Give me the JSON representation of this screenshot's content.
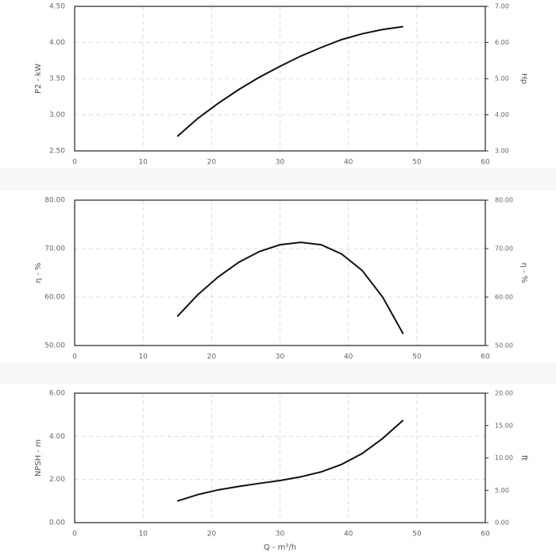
{
  "chart_data": [
    {
      "type": "line",
      "x": [
        15,
        18,
        21,
        24,
        27,
        30,
        33,
        36,
        39,
        42,
        45,
        48
      ],
      "values": [
        2.7,
        2.95,
        3.16,
        3.35,
        3.52,
        3.67,
        3.81,
        3.93,
        4.04,
        4.12,
        4.18,
        4.22
      ],
      "color": "#111111",
      "grid": true,
      "xlim": [
        0,
        60
      ],
      "xticks": [
        0,
        10,
        20,
        30,
        40,
        50,
        60
      ],
      "ylim": [
        2.5,
        4.5
      ],
      "yticks": [
        {
          "value": 2.5,
          "label": "2.50"
        },
        {
          "value": 3,
          "label": "3.00"
        },
        {
          "value": 3.5,
          "label": "3.50"
        },
        {
          "value": 4,
          "label": "4.00"
        },
        {
          "value": 4.5,
          "label": "4.50"
        }
      ],
      "y2lim": [
        3,
        7
      ],
      "y2ticks": [
        {
          "value": 3,
          "label": "3.00"
        },
        {
          "value": 4,
          "label": "4.00"
        },
        {
          "value": 5,
          "label": "5.00"
        },
        {
          "value": 6,
          "label": "6.00"
        },
        {
          "value": 7,
          "label": "7.00"
        }
      ],
      "ylabel": "P2 - kW",
      "y2label": "Hp"
    },
    {
      "type": "line",
      "x": [
        15,
        18,
        21,
        24,
        27,
        30,
        33,
        36,
        39,
        42,
        45,
        48
      ],
      "values": [
        56,
        60.5,
        64.2,
        67.2,
        69.4,
        70.8,
        71.3,
        70.8,
        68.9,
        65.5,
        60,
        52.4
      ],
      "color": "#111111",
      "grid": true,
      "xlim": [
        0,
        60
      ],
      "xticks": [
        0,
        10,
        20,
        30,
        40,
        50,
        60
      ],
      "ylim": [
        50,
        80
      ],
      "yticks": [
        {
          "value": 50,
          "label": "50.00"
        },
        {
          "value": 60,
          "label": "60.00"
        },
        {
          "value": 70,
          "label": "70.00"
        },
        {
          "value": 80,
          "label": "80.00"
        }
      ],
      "y2lim": [
        50,
        80
      ],
      "y2ticks": [
        {
          "value": 50,
          "label": "50.00"
        },
        {
          "value": 60,
          "label": "60.00"
        },
        {
          "value": 70,
          "label": "70.00"
        },
        {
          "value": 80,
          "label": "80.00"
        }
      ],
      "ylabel": "η - %",
      "y2label": "η - %"
    },
    {
      "type": "line",
      "x": [
        15,
        18,
        21,
        24,
        27,
        30,
        33,
        36,
        39,
        42,
        45,
        48
      ],
      "values": [
        1.0,
        1.3,
        1.52,
        1.68,
        1.82,
        1.95,
        2.12,
        2.35,
        2.7,
        3.2,
        3.9,
        4.75
      ],
      "color": "#111111",
      "grid": true,
      "xlim": [
        0,
        60
      ],
      "xticks": [
        0,
        10,
        20,
        30,
        40,
        50,
        60
      ],
      "ylim": [
        0,
        6
      ],
      "yticks": [
        {
          "value": 0,
          "label": "0.00"
        },
        {
          "value": 2,
          "label": "2.00"
        },
        {
          "value": 4,
          "label": "4.00"
        },
        {
          "value": 6,
          "label": "6.00"
        }
      ],
      "y2lim": [
        0,
        20
      ],
      "y2ticks": [
        {
          "value": 0,
          "label": "0.00"
        },
        {
          "value": 5,
          "label": "5.00"
        },
        {
          "value": 10,
          "label": "10.00"
        },
        {
          "value": 15,
          "label": "15.00"
        },
        {
          "value": 20,
          "label": "20.00"
        }
      ],
      "ylabel": "NPSH - m",
      "y2label": "ft",
      "xlabel": "Q - m³/h"
    }
  ]
}
